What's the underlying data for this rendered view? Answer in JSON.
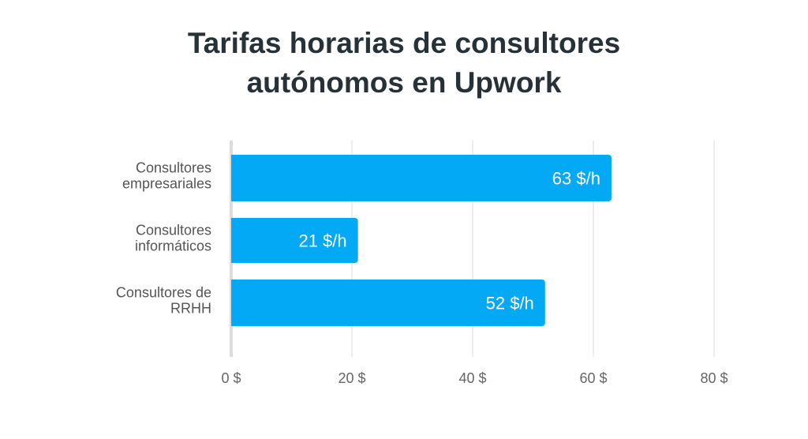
{
  "chart_data": {
    "type": "bar",
    "orientation": "horizontal",
    "title_lines": [
      "Tarifas horarias de consultores",
      "autónomos en Upwork"
    ],
    "categories": [
      [
        "Consultores",
        "empresariales"
      ],
      [
        "Consultores",
        "informáticos"
      ],
      [
        "Consultores de",
        "RRHH"
      ]
    ],
    "values": [
      63,
      21,
      52
    ],
    "data_labels": [
      "63 $/h",
      "21 $/h",
      "52 $/h"
    ],
    "xticks": [
      0,
      20,
      40,
      60,
      80
    ],
    "xtick_labels": [
      "0 $",
      "20 $",
      "40 $",
      "60 $",
      "80 $"
    ],
    "xlim": [
      0,
      80
    ],
    "grid": true,
    "bar_color": "#03A9F4",
    "title_color": "#263238"
  }
}
